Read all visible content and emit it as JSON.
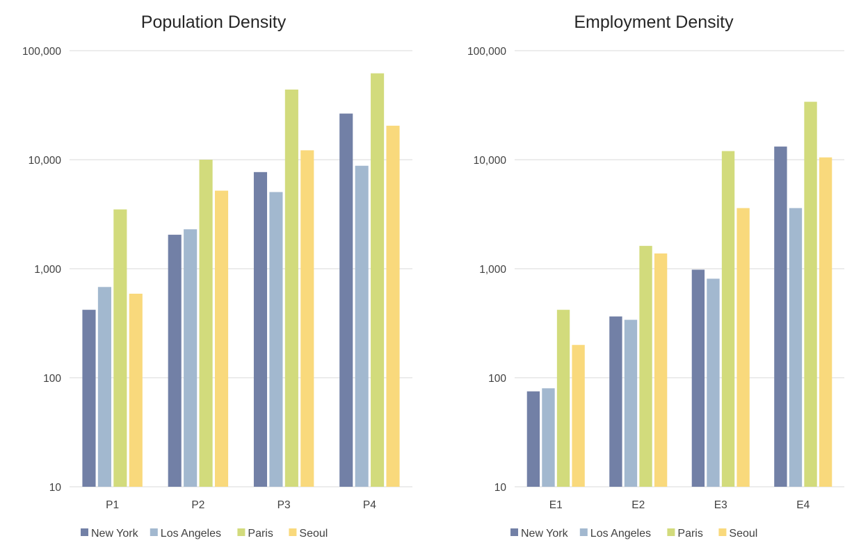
{
  "chart_data": [
    {
      "type": "bar",
      "title": "Population Density",
      "categories": [
        "P1",
        "P2",
        "P3",
        "P4"
      ],
      "yscale": "log",
      "ylim": [
        10,
        100000
      ],
      "yticks": [
        "10",
        "100",
        "1,000",
        "10,000",
        "100,000"
      ],
      "grid": true,
      "legend_position": "bottom",
      "series": [
        {
          "name": "New York",
          "color": "#7280a6",
          "values": [
            420,
            2050,
            7700,
            26500
          ]
        },
        {
          "name": "Los Angeles",
          "color": "#a2b8cf",
          "values": [
            680,
            2300,
            5050,
            8800
          ]
        },
        {
          "name": "Paris",
          "color": "#d2db7c",
          "values": [
            3500,
            10000,
            44000,
            62000
          ]
        },
        {
          "name": "Seoul",
          "color": "#f9d97c",
          "values": [
            590,
            5200,
            12200,
            20500
          ]
        }
      ]
    },
    {
      "type": "bar",
      "title": "Employment Density",
      "categories": [
        "E1",
        "E2",
        "E3",
        "E4"
      ],
      "yscale": "log",
      "ylim": [
        10,
        100000
      ],
      "yticks": [
        "10",
        "100",
        "1,000",
        "10,000",
        "100,000"
      ],
      "grid": true,
      "legend_position": "bottom",
      "series": [
        {
          "name": "New York",
          "color": "#7280a6",
          "values": [
            75,
            365,
            980,
            13200
          ]
        },
        {
          "name": "Los Angeles",
          "color": "#a2b8cf",
          "values": [
            80,
            340,
            810,
            3600
          ]
        },
        {
          "name": "Paris",
          "color": "#d2db7c",
          "values": [
            420,
            1620,
            12000,
            34000
          ]
        },
        {
          "name": "Seoul",
          "color": "#f9d97c",
          "values": [
            200,
            1380,
            3600,
            10500
          ]
        }
      ]
    }
  ]
}
